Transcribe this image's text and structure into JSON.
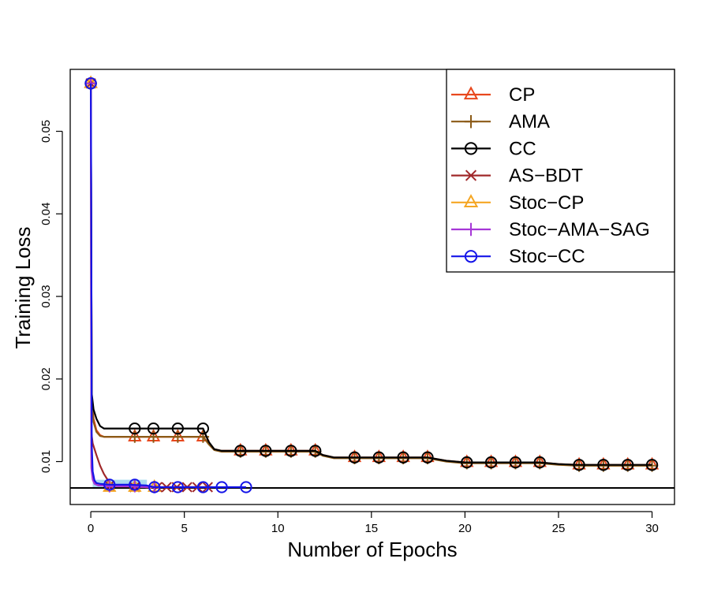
{
  "chart_data": {
    "type": "line",
    "title": "",
    "xlabel": "Number of Epochs",
    "ylabel": "Training Loss",
    "xlim": [
      -1.1,
      31.2
    ],
    "ylim": [
      0.0048,
      0.0575
    ],
    "x_ticks": [
      0,
      5,
      10,
      15,
      20,
      25,
      30
    ],
    "y_ticks": [
      0.01,
      0.02,
      0.03,
      0.04,
      0.05
    ],
    "x_tick_labels": [
      "0",
      "5",
      "10",
      "15",
      "20",
      "25",
      "30"
    ],
    "y_tick_labels": [
      "0.01",
      "0.02",
      "0.03",
      "0.04",
      "0.05"
    ],
    "grid": false,
    "legend_position": "top-right",
    "reference_line": {
      "y": 0.0068,
      "color": "#000000"
    },
    "shaded_band": {
      "x": [
        0.1,
        3.0
      ],
      "y": [
        0.0068,
        0.0078
      ],
      "color": "#8ecde9"
    },
    "series": [
      {
        "name": "CP",
        "color": "#e8481d",
        "marker": "triangle",
        "x": [
          0,
          0.05,
          0.15,
          0.3,
          0.5,
          0.7,
          1.0,
          2.0,
          3.0,
          4.0,
          5.0,
          6.0,
          6.3,
          6.6,
          7.0,
          8.0,
          9.0,
          10.0,
          11.0,
          12.0,
          12.4,
          13.0,
          14.0,
          16.0,
          18.0,
          19.0,
          20.0,
          22.0,
          24.0,
          25.0,
          26.0,
          28.0,
          30.0
        ],
        "y": [
          0.0558,
          0.018,
          0.0152,
          0.0138,
          0.0132,
          0.013,
          0.013,
          0.013,
          0.013,
          0.013,
          0.013,
          0.013,
          0.0122,
          0.0115,
          0.0113,
          0.0113,
          0.0113,
          0.0113,
          0.0113,
          0.0113,
          0.0108,
          0.0105,
          0.0105,
          0.0105,
          0.0105,
          0.0101,
          0.0099,
          0.0099,
          0.0099,
          0.0097,
          0.0096,
          0.0096,
          0.0096
        ],
        "marker_x": [
          0,
          2.35,
          3.35,
          4.65,
          6.0,
          8.0,
          9.35,
          10.7,
          12.0,
          14.1,
          15.4,
          16.7,
          18.0,
          20.1,
          21.4,
          22.7,
          24.0,
          26.1,
          27.4,
          28.7,
          30.0
        ],
        "marker_y": [
          0.0558,
          0.013,
          0.013,
          0.013,
          0.013,
          0.0113,
          0.0113,
          0.0113,
          0.0113,
          0.0105,
          0.0105,
          0.0105,
          0.0105,
          0.0099,
          0.0099,
          0.0099,
          0.0099,
          0.0096,
          0.0096,
          0.0096,
          0.0096
        ]
      },
      {
        "name": "AMA",
        "color": "#8b5a16",
        "marker": "plus",
        "x": [
          0,
          0.05,
          0.15,
          0.3,
          0.5,
          0.7,
          1.0,
          2.0,
          3.0,
          4.0,
          5.0,
          6.0,
          6.3,
          6.6,
          7.0,
          8.0,
          9.0,
          10.0,
          11.0,
          12.0,
          12.4,
          13.0,
          14.0,
          16.0,
          18.0,
          19.0,
          20.0,
          22.0,
          24.0,
          25.0,
          26.0,
          28.0,
          30.0
        ],
        "y": [
          0.0558,
          0.0175,
          0.0148,
          0.0136,
          0.0131,
          0.013,
          0.013,
          0.013,
          0.013,
          0.013,
          0.013,
          0.013,
          0.0121,
          0.0114,
          0.0112,
          0.0112,
          0.0112,
          0.0112,
          0.0112,
          0.0112,
          0.0107,
          0.0104,
          0.0104,
          0.0104,
          0.0104,
          0.01,
          0.0098,
          0.0098,
          0.0098,
          0.0096,
          0.0095,
          0.0095,
          0.0095
        ],
        "marker_x": [
          0,
          2.35,
          3.35,
          4.65,
          6.0,
          8.0,
          9.35,
          10.7,
          12.0,
          14.1,
          15.4,
          16.7,
          18.0,
          20.1,
          21.4,
          22.7,
          24.0,
          26.1,
          27.4,
          28.7,
          30.0
        ],
        "marker_y": [
          0.0558,
          0.013,
          0.013,
          0.013,
          0.013,
          0.0112,
          0.0112,
          0.0112,
          0.0112,
          0.0104,
          0.0104,
          0.0104,
          0.0104,
          0.0098,
          0.0098,
          0.0098,
          0.0098,
          0.0095,
          0.0095,
          0.0095,
          0.0095
        ]
      },
      {
        "name": "CC",
        "color": "#000000",
        "marker": "circle",
        "x": [
          0,
          0.05,
          0.15,
          0.3,
          0.5,
          0.7,
          1.0,
          2.0,
          3.0,
          4.0,
          5.0,
          6.0,
          6.3,
          6.6,
          7.0,
          8.0,
          9.0,
          10.0,
          11.0,
          12.0,
          12.4,
          13.0,
          14.0,
          16.0,
          18.0,
          19.0,
          20.0,
          22.0,
          24.0,
          25.0,
          26.0,
          28.0,
          30.0
        ],
        "y": [
          0.0558,
          0.0182,
          0.0163,
          0.0152,
          0.0143,
          0.014,
          0.014,
          0.014,
          0.014,
          0.014,
          0.014,
          0.014,
          0.0124,
          0.0115,
          0.0113,
          0.0113,
          0.0113,
          0.0113,
          0.0113,
          0.0113,
          0.0108,
          0.0105,
          0.0105,
          0.0105,
          0.0105,
          0.0101,
          0.0099,
          0.0099,
          0.0099,
          0.0097,
          0.0096,
          0.0096,
          0.0096
        ],
        "marker_x": [
          0,
          2.35,
          3.35,
          4.65,
          6.0,
          8.0,
          9.35,
          10.7,
          12.0,
          14.1,
          15.4,
          16.7,
          18.0,
          20.1,
          21.4,
          22.7,
          24.0,
          26.1,
          27.4,
          28.7,
          30.0
        ],
        "marker_y": [
          0.0558,
          0.014,
          0.014,
          0.014,
          0.014,
          0.0113,
          0.0113,
          0.0113,
          0.0113,
          0.0105,
          0.0105,
          0.0105,
          0.0105,
          0.0099,
          0.0099,
          0.0099,
          0.0099,
          0.0096,
          0.0096,
          0.0096,
          0.0096
        ]
      },
      {
        "name": "AS−BDT",
        "color": "#a0282a",
        "marker": "cross",
        "x": [
          0,
          0.03,
          0.1,
          0.3,
          0.5,
          0.7,
          0.9,
          1.0,
          1.5,
          2.0,
          3.0,
          3.5,
          4.0,
          5.0,
          6.0,
          6.5
        ],
        "y": [
          0.0558,
          0.0135,
          0.0122,
          0.0108,
          0.0095,
          0.0085,
          0.0078,
          0.0073,
          0.0071,
          0.007,
          0.0069,
          0.0069,
          0.0069,
          0.0069,
          0.0069,
          0.0069
        ],
        "marker_x": [
          0,
          1.0,
          2.35,
          3.55,
          4.05,
          4.6,
          5.15,
          5.7,
          6.25
        ],
        "marker_y": [
          0.0558,
          0.0071,
          0.0069,
          0.0069,
          0.0069,
          0.0069,
          0.0069,
          0.0069,
          0.0069
        ]
      },
      {
        "name": "Stoc−CP",
        "color": "#f5a623",
        "marker": "triangle",
        "x": [
          0,
          0.03,
          0.1,
          0.2,
          0.4,
          0.7,
          1.0,
          2.0,
          3.0,
          3.4
        ],
        "y": [
          0.0558,
          0.0095,
          0.008,
          0.0074,
          0.0072,
          0.0071,
          0.007,
          0.007,
          0.0069,
          0.0069
        ],
        "marker_x": [
          0,
          1.0,
          2.35,
          3.4
        ],
        "marker_y": [
          0.0558,
          0.0069,
          0.0069,
          0.0069
        ]
      },
      {
        "name": "Stoc−AMA−SAG",
        "color": "#a637d7",
        "marker": "plus",
        "x": [
          0,
          0.03,
          0.1,
          0.2,
          0.4,
          0.7,
          1.0,
          2.0,
          3.0,
          3.4
        ],
        "y": [
          0.0558,
          0.0092,
          0.0078,
          0.0073,
          0.0071,
          0.0071,
          0.007,
          0.007,
          0.0069,
          0.0069
        ],
        "marker_x": [
          0,
          1.0,
          2.35,
          3.4
        ],
        "marker_y": [
          0.0558,
          0.007,
          0.007,
          0.0069
        ]
      },
      {
        "name": "Stoc−CC",
        "color": "#1414e8",
        "marker": "circle",
        "x": [
          0,
          0.02,
          0.05,
          0.1,
          0.2,
          0.3,
          0.5,
          1.0,
          2.0,
          3.0,
          3.4,
          5.0,
          7.0,
          8.3
        ],
        "y": [
          0.0558,
          0.0435,
          0.012,
          0.0088,
          0.0077,
          0.0074,
          0.0073,
          0.0072,
          0.0072,
          0.0071,
          0.0069,
          0.0069,
          0.0069,
          0.0069
        ],
        "marker_x": [
          0,
          1.0,
          2.35,
          3.4,
          4.65,
          6.0,
          7.0,
          8.3
        ],
        "marker_y": [
          0.0558,
          0.0072,
          0.0072,
          0.0069,
          0.0069,
          0.0069,
          0.0069,
          0.0069
        ]
      }
    ]
  }
}
